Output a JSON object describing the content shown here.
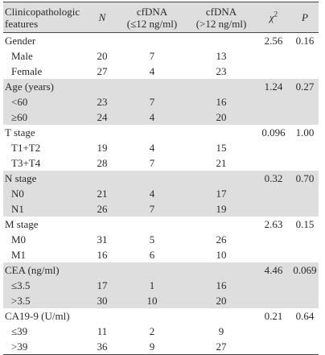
{
  "header": {
    "feature": "Clinicopathologic features",
    "n": "N",
    "low_top": "cfDNA",
    "low_bottom": "(≤12 ng/ml)",
    "high_top": "cfDNA",
    "high_bottom": "(>12 ng/ml)",
    "chi": "χ",
    "chi_sup": "2",
    "p": "P"
  },
  "groups": [
    {
      "label": "Gender",
      "chi": "2.56",
      "p": "0.16",
      "shaded": false,
      "rows": [
        {
          "label": "Male",
          "n": "20",
          "low": "7",
          "high": "13"
        },
        {
          "label": "Female",
          "n": "27",
          "low": "4",
          "high": "23"
        }
      ]
    },
    {
      "label": "Age (years)",
      "chi": "1.24",
      "p": "0.27",
      "shaded": true,
      "rows": [
        {
          "label": "<60",
          "n": "23",
          "low": "7",
          "high": "16"
        },
        {
          "label": "≥60",
          "n": "24",
          "low": "4",
          "high": "20"
        }
      ]
    },
    {
      "label": "T stage",
      "chi": "0.096",
      "p": "1.00",
      "shaded": false,
      "rows": [
        {
          "label": "T1+T2",
          "n": "19",
          "low": "4",
          "high": "15"
        },
        {
          "label": "T3+T4",
          "n": "28",
          "low": "7",
          "high": "21"
        }
      ]
    },
    {
      "label": "N stage",
      "chi": "0.32",
      "p": "0.70",
      "shaded": true,
      "rows": [
        {
          "label": "N0",
          "n": "21",
          "low": "4",
          "high": "17"
        },
        {
          "label": "N1",
          "n": "26",
          "low": "7",
          "high": "19"
        }
      ]
    },
    {
      "label": "M stage",
      "chi": "2.63",
      "p": "0.15",
      "shaded": false,
      "rows": [
        {
          "label": "M0",
          "n": "31",
          "low": "5",
          "high": "26"
        },
        {
          "label": "M1",
          "n": "16",
          "low": "6",
          "high": "10"
        }
      ]
    },
    {
      "label": "CEA (ng/ml)",
      "chi": "4.46",
      "p": "0.069",
      "shaded": true,
      "rows": [
        {
          "label": "≤3.5",
          "n": "17",
          "low": "1",
          "high": "16"
        },
        {
          "label": ">3.5",
          "n": "30",
          "low": "10",
          "high": "20"
        }
      ]
    },
    {
      "label": "CA19-9 (U/ml)",
      "chi": "0.21",
      "p": "0.64",
      "shaded": false,
      "rows": [
        {
          "label": "≤39",
          "n": "11",
          "low": "2",
          "high": "9"
        },
        {
          "label": ">39",
          "n": "36",
          "low": "9",
          "high": "27"
        }
      ]
    }
  ]
}
